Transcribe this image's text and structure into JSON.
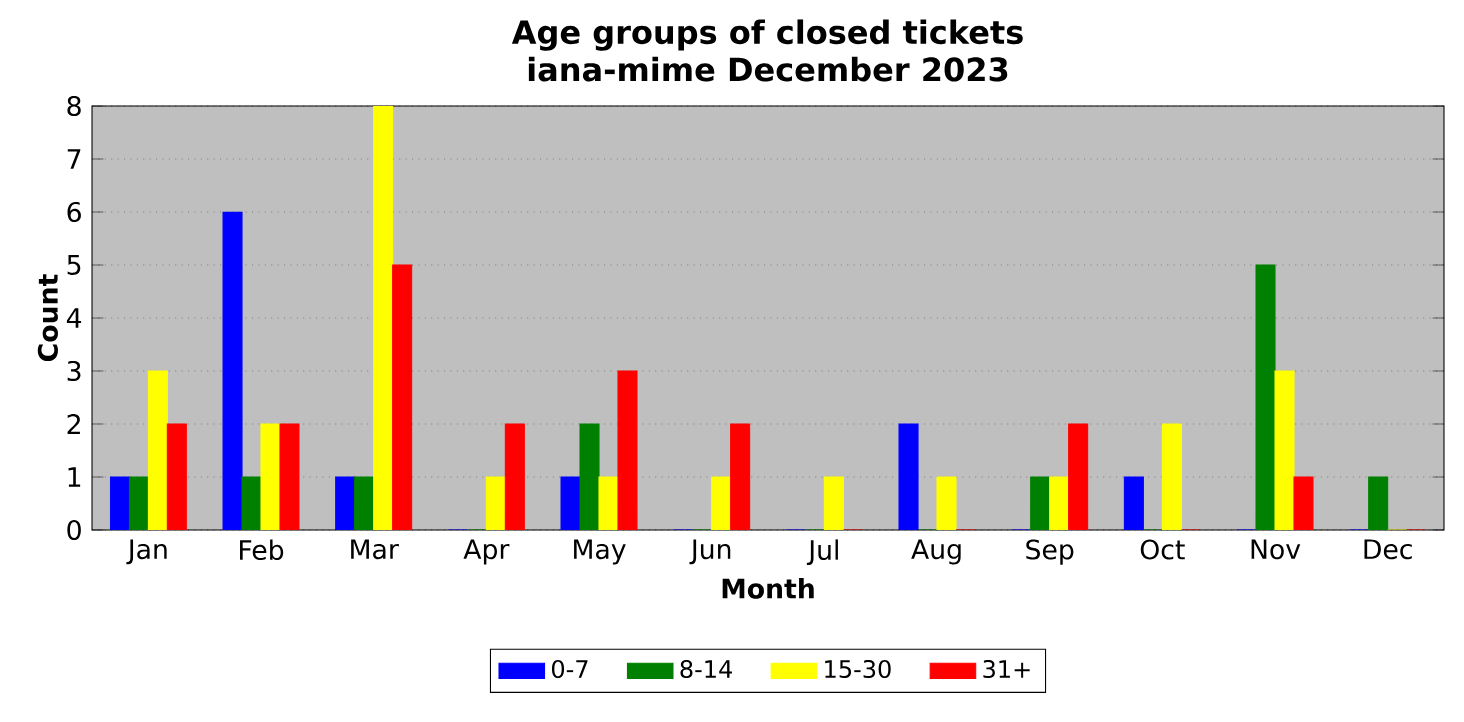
{
  "chart_data": {
    "type": "bar",
    "title": "Age groups of closed tickets",
    "subtitle": "iana-mime December 2023",
    "xlabel": "Month",
    "ylabel": "Count",
    "categories": [
      "Jan",
      "Feb",
      "Mar",
      "Apr",
      "May",
      "Jun",
      "Jul",
      "Aug",
      "Sep",
      "Oct",
      "Nov",
      "Dec"
    ],
    "series": [
      {
        "name": "0-7",
        "color": "#0000ff",
        "values": [
          1,
          6,
          1,
          0,
          1,
          0,
          0,
          2,
          0,
          1,
          0,
          0
        ]
      },
      {
        "name": "8-14",
        "color": "#008000",
        "values": [
          1,
          1,
          1,
          0,
          2,
          0,
          0,
          0,
          1,
          0,
          5,
          1
        ]
      },
      {
        "name": "15-30",
        "color": "#ffff00",
        "values": [
          3,
          2,
          8,
          1,
          1,
          1,
          1,
          1,
          1,
          2,
          3,
          0
        ]
      },
      {
        "name": "31+",
        "color": "#ff0000",
        "values": [
          2,
          2,
          5,
          2,
          3,
          2,
          0,
          0,
          2,
          0,
          1,
          0
        ]
      }
    ],
    "ylim": [
      0,
      8
    ],
    "yticks": [
      0,
      1,
      2,
      3,
      4,
      5,
      6,
      7,
      8
    ],
    "grid": "y",
    "legend": "bottom"
  }
}
